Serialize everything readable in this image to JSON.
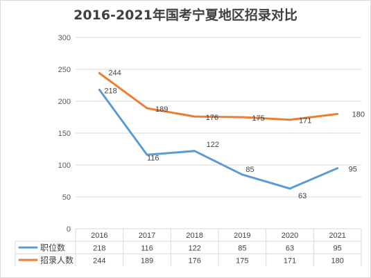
{
  "chart_data": {
    "type": "line",
    "title": "2016-2021年国考宁夏地区招录对比",
    "categories": [
      "2016",
      "2017",
      "2018",
      "2019",
      "2020",
      "2021"
    ],
    "series": [
      {
        "name": "职位数",
        "values": [
          218,
          116,
          122,
          85,
          63,
          95
        ],
        "color": "#5b9bd5"
      },
      {
        "name": "招录人数",
        "values": [
          244,
          189,
          176,
          175,
          171,
          180
        ],
        "color": "#ed7d31"
      }
    ],
    "ylim": [
      0,
      300
    ],
    "yticks": [
      0,
      50,
      100,
      150,
      200,
      250,
      300
    ],
    "grid": true,
    "legend": "data-table"
  }
}
